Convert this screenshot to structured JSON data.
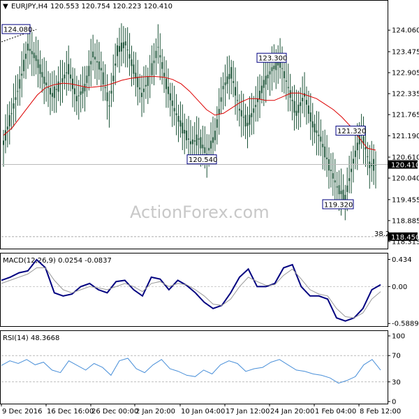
{
  "header": {
    "symbol": "EURJPY,H4",
    "ohlc": "120.553 120.754 120.223 120.410"
  },
  "watermark": "ActionForex.com",
  "colors": {
    "candle": "#1a5236",
    "ma": "#dd0000",
    "macd": "#000080",
    "signal": "#999999",
    "rsi": "#4a90d9",
    "label_box_border": "#000080",
    "grid_dash": "#aaaaaa"
  },
  "chart_data": [
    {
      "id": "price",
      "type": "candlestick",
      "title": "EURJPY,H4",
      "ylim": [
        118.2,
        124.5
      ],
      "y_ticks": [
        "124.060",
        "123.475",
        "122.905",
        "122.335",
        "121.765",
        "121.190",
        "120.610",
        "120.040",
        "119.455",
        "118.885",
        "118.315"
      ],
      "current_price": "120.410",
      "ma_series": [
        121.2,
        121.4,
        121.7,
        122.0,
        122.3,
        122.5,
        122.58,
        122.62,
        122.6,
        122.55,
        122.5,
        122.52,
        122.55,
        122.62,
        122.7,
        122.75,
        122.78,
        122.8,
        122.8,
        122.78,
        122.72,
        122.6,
        122.4,
        122.15,
        121.9,
        121.75,
        121.8,
        121.95,
        122.1,
        122.2,
        122.2,
        122.15,
        122.15,
        122.25,
        122.35,
        122.35,
        122.28,
        122.2,
        122.05,
        121.9,
        121.7,
        121.45,
        121.15,
        120.85,
        120.8
      ],
      "price_series": [
        121.0,
        121.8,
        122.6,
        123.6,
        123.3,
        122.7,
        122.3,
        122.6,
        123.0,
        122.2,
        122.5,
        123.4,
        123.0,
        122.0,
        123.5,
        123.7,
        123.0,
        122.3,
        122.8,
        123.6,
        122.6,
        121.9,
        121.4,
        121.0,
        121.1,
        120.7,
        121.2,
        122.5,
        122.9,
        121.9,
        121.5,
        122.0,
        122.6,
        123.0,
        123.2,
        122.5,
        121.8,
        122.3,
        121.5,
        121.1,
        120.4,
        119.8,
        119.5,
        120.5,
        121.3,
        120.4
      ],
      "annotations": [
        {
          "label": "124.080",
          "y": 124.08
        },
        {
          "label": "123.300",
          "y": 123.3
        },
        {
          "label": "121.320",
          "y": 121.32
        },
        {
          "label": "120.540",
          "y": 120.54
        },
        {
          "label": "119.320",
          "y": 119.32
        },
        {
          "label": "118.450",
          "y": 118.45
        },
        {
          "label": "38.2",
          "y": 118.45
        }
      ]
    },
    {
      "id": "macd",
      "type": "line",
      "title": "MACD(12,26,9) 0.0254 -0.0837",
      "ylim": [
        -0.62,
        0.45
      ],
      "y_ticks": [
        "0.434",
        "0.00",
        "-0.5889"
      ],
      "series": [
        {
          "name": "MACD",
          "values": [
            0.1,
            0.15,
            0.22,
            0.25,
            0.43,
            0.3,
            -0.1,
            -0.15,
            -0.12,
            0.0,
            0.05,
            -0.05,
            -0.1,
            0.08,
            0.1,
            -0.05,
            -0.15,
            0.15,
            0.12,
            -0.05,
            0.1,
            0.02,
            -0.1,
            -0.25,
            -0.35,
            -0.3,
            -0.1,
            0.15,
            0.28,
            0.0,
            0.0,
            0.05,
            0.3,
            0.35,
            0.0,
            -0.15,
            -0.15,
            -0.2,
            -0.5,
            -0.55,
            -0.5,
            -0.35,
            -0.05,
            0.03
          ]
        },
        {
          "name": "Signal",
          "values": [
            0.05,
            0.1,
            0.15,
            0.2,
            0.3,
            0.3,
            0.1,
            -0.05,
            -0.1,
            -0.05,
            0.0,
            -0.02,
            -0.05,
            0.0,
            0.05,
            0.0,
            -0.08,
            0.05,
            0.08,
            0.0,
            0.05,
            0.03,
            -0.05,
            -0.15,
            -0.28,
            -0.3,
            -0.2,
            0.0,
            0.15,
            0.08,
            0.02,
            0.03,
            0.18,
            0.28,
            0.12,
            -0.05,
            -0.12,
            -0.15,
            -0.35,
            -0.48,
            -0.5,
            -0.42,
            -0.2,
            -0.08
          ]
        }
      ]
    },
    {
      "id": "rsi",
      "type": "line",
      "title": "RSI(14) 48.3668",
      "ylim": [
        0,
        100
      ],
      "y_ticks": [
        "100",
        "70",
        "30",
        "0"
      ],
      "levels": [
        70,
        30
      ],
      "series": [
        {
          "name": "RSI",
          "values": [
            55,
            62,
            58,
            64,
            56,
            60,
            48,
            44,
            62,
            55,
            48,
            58,
            52,
            40,
            62,
            66,
            50,
            44,
            56,
            64,
            50,
            46,
            40,
            38,
            48,
            42,
            56,
            62,
            58,
            46,
            50,
            52,
            60,
            64,
            56,
            48,
            46,
            42,
            40,
            36,
            28,
            32,
            38,
            56,
            64,
            48
          ]
        }
      ]
    }
  ],
  "x_axis": {
    "labels": [
      "9 Dec 2016",
      "16 Dec 16:00",
      "26 Dec 00:00",
      "2 Jan 20:00",
      "10 Jan 04:00",
      "17 Jan 12:00",
      "24 Jan 20:00",
      "1 Feb 04:00",
      "8 Feb 12:00"
    ]
  }
}
